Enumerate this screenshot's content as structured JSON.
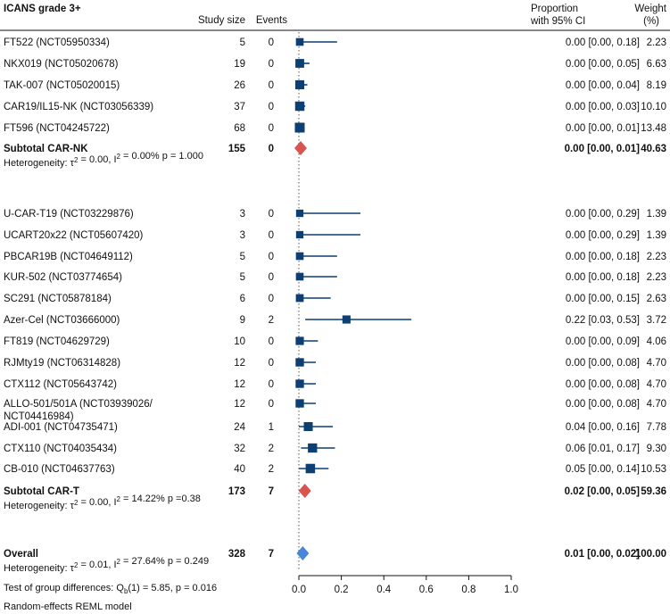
{
  "chart_data": {
    "type": "forest",
    "title": "ICANS grade 3+",
    "columns": {
      "size": "Study size",
      "events": "Events",
      "ci_line1": "Proportion",
      "ci_line2": "with 95% CI",
      "weight_line1": "Weight",
      "weight_line2": "(%)"
    },
    "x_axis": {
      "ticks": [
        0.0,
        0.2,
        0.4,
        0.6,
        0.8,
        1.0
      ],
      "tick_labels": [
        "0.0",
        "0.2",
        "0.4",
        "0.6",
        "0.8",
        "1.0"
      ],
      "xlim": [
        0,
        1
      ],
      "reference_line": 0
    },
    "colors": {
      "study": "#0d3f73",
      "subtotal": "#d9534f",
      "overall": "#4a86d8",
      "line": "#111111"
    },
    "groups": [
      {
        "name": "CAR-NK",
        "studies": [
          {
            "label": "FT522 (NCT05950334)",
            "n": "5",
            "events": "0",
            "est": 0.0,
            "lo": 0.0,
            "hi": 0.18,
            "ci_text": "0.00 [0.00, 0.18]",
            "weight": "2.23"
          },
          {
            "label": "NKX019 (NCT05020678)",
            "n": "19",
            "events": "0",
            "est": 0.0,
            "lo": 0.0,
            "hi": 0.05,
            "ci_text": "0.00 [0.00, 0.05]",
            "weight": "6.63"
          },
          {
            "label": "TAK-007 (NCT05020015)",
            "n": "26",
            "events": "0",
            "est": 0.0,
            "lo": 0.0,
            "hi": 0.04,
            "ci_text": "0.00 [0.00, 0.04]",
            "weight": "8.19"
          },
          {
            "label": "CAR19/IL15-NK (NCT03056339)",
            "n": "37",
            "events": "0",
            "est": 0.0,
            "lo": 0.0,
            "hi": 0.03,
            "ci_text": "0.00 [0.00, 0.03]",
            "weight": "10.10"
          },
          {
            "label": "FT596 (NCT04245722)",
            "n": "68",
            "events": "0",
            "est": 0.0,
            "lo": 0.0,
            "hi": 0.01,
            "ci_text": "0.00 [0.00, 0.01]",
            "weight": "13.48"
          }
        ],
        "subtotal": {
          "label": "Subtotal CAR-NK",
          "n": "155",
          "events": "0",
          "est": 0.0,
          "lo": 0.0,
          "hi": 0.01,
          "ci_text": "0.00 [0.00, 0.01]",
          "weight": "40.63"
        },
        "heterogeneity": "Heterogeneity: τ² = 0.00, I² = 0.00% p = 1.000"
      },
      {
        "name": "CAR-T",
        "studies": [
          {
            "label": "U-CAR-T19 (NCT03229876)",
            "n": "3",
            "events": "0",
            "est": 0.0,
            "lo": 0.0,
            "hi": 0.29,
            "ci_text": "0.00 [0.00, 0.29]",
            "weight": "1.39"
          },
          {
            "label": "UCART20x22 (NCT05607420)",
            "n": "3",
            "events": "0",
            "est": 0.0,
            "lo": 0.0,
            "hi": 0.29,
            "ci_text": "0.00 [0.00, 0.29]",
            "weight": "1.39"
          },
          {
            "label": "PBCAR19B (NCT04649112)",
            "n": "5",
            "events": "0",
            "est": 0.0,
            "lo": 0.0,
            "hi": 0.18,
            "ci_text": "0.00 [0.00, 0.18]",
            "weight": "2.23"
          },
          {
            "label": "KUR-502 (NCT03774654)",
            "n": "5",
            "events": "0",
            "est": 0.0,
            "lo": 0.0,
            "hi": 0.18,
            "ci_text": "0.00 [0.00, 0.18]",
            "weight": "2.23"
          },
          {
            "label": "SC291 (NCT05878184)",
            "n": "6",
            "events": "0",
            "est": 0.0,
            "lo": 0.0,
            "hi": 0.15,
            "ci_text": "0.00 [0.00, 0.15]",
            "weight": "2.63"
          },
          {
            "label": "Azer-Cel (NCT03666000)",
            "n": "9",
            "events": "2",
            "est": 0.22,
            "lo": 0.03,
            "hi": 0.53,
            "ci_text": "0.22 [0.03, 0.53]",
            "weight": "3.72"
          },
          {
            "label": "FT819 (NCT04629729)",
            "n": "10",
            "events": "0",
            "est": 0.0,
            "lo": 0.0,
            "hi": 0.09,
            "ci_text": "0.00 [0.00, 0.09]",
            "weight": "4.06"
          },
          {
            "label": "RJMty19 (NCT06314828)",
            "n": "12",
            "events": "0",
            "est": 0.0,
            "lo": 0.0,
            "hi": 0.08,
            "ci_text": "0.00 [0.00, 0.08]",
            "weight": "4.70"
          },
          {
            "label": "CTX112 (NCT05643742)",
            "n": "12",
            "events": "0",
            "est": 0.0,
            "lo": 0.0,
            "hi": 0.08,
            "ci_text": "0.00 [0.00, 0.08]",
            "weight": "4.70"
          },
          {
            "label": "ALLO-501/501A (NCT03939026/",
            "label2": "NCT04416984)",
            "n": "12",
            "events": "0",
            "est": 0.0,
            "lo": 0.0,
            "hi": 0.08,
            "ci_text": "0.00 [0.00, 0.08]",
            "weight": "4.70"
          },
          {
            "label": "ADI-001 (NCT04735471)",
            "n": "24",
            "events": "1",
            "est": 0.04,
            "lo": 0.0,
            "hi": 0.16,
            "ci_text": "0.04 [0.00, 0.16]",
            "weight": "7.78"
          },
          {
            "label": "CTX110 (NCT04035434)",
            "n": "32",
            "events": "2",
            "est": 0.06,
            "lo": 0.01,
            "hi": 0.17,
            "ci_text": "0.06 [0.01, 0.17]",
            "weight": "9.30"
          },
          {
            "label": "CB-010 (NCT04637763)",
            "n": "40",
            "events": "2",
            "est": 0.05,
            "lo": 0.0,
            "hi": 0.14,
            "ci_text": "0.05 [0.00, 0.14]",
            "weight": "10.53"
          }
        ],
        "subtotal": {
          "label": "Subtotal CAR-T",
          "n": "173",
          "events": "7",
          "est": 0.02,
          "lo": 0.0,
          "hi": 0.05,
          "ci_text": "0.02 [0.00, 0.05]",
          "weight": "59.36"
        },
        "heterogeneity": "Heterogeneity: τ² = 0.00, I² = 14.22% p =0.38"
      }
    ],
    "overall": {
      "label": "Overall",
      "n": "328",
      "events": "7",
      "est": 0.01,
      "lo": 0.0,
      "hi": 0.02,
      "ci_text": "0.01 [0.00, 0.02]",
      "weight": "100.00"
    },
    "overall_heterogeneity": "Heterogeneity: τ² = 0.01, I² = 27.64% p = 0.249",
    "group_test": "Test of group differences: Q_b(1) = 5.85, p = 0.016",
    "model_note": "Random-effects REML model"
  }
}
